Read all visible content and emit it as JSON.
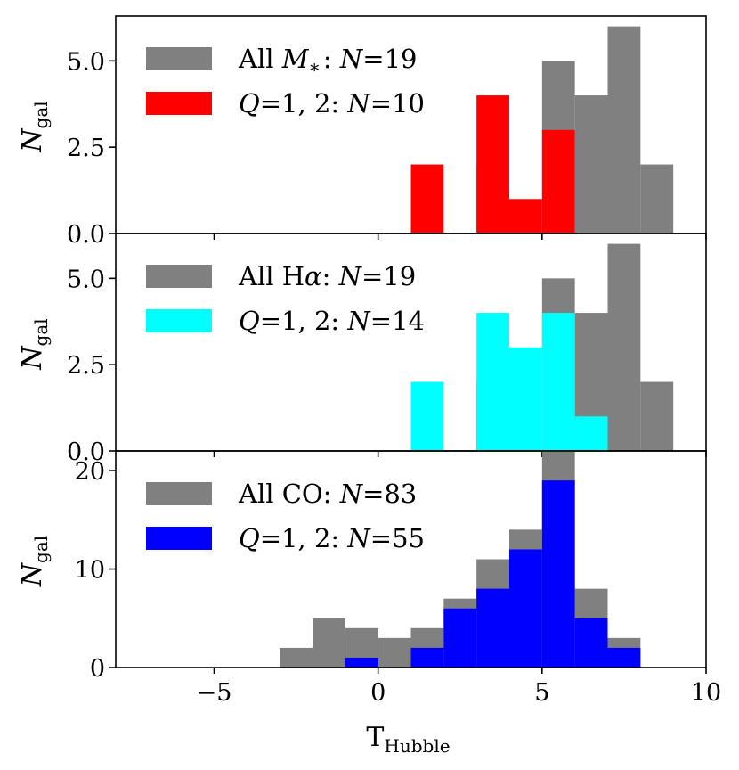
{
  "chart_data": [
    {
      "type": "bar",
      "x": [
        -8,
        -7,
        -6,
        -5,
        -4,
        -3,
        -2,
        -1,
        0,
        1,
        2,
        3,
        4,
        5,
        6,
        7,
        8,
        9
      ],
      "bin_width": 1,
      "series": [
        {
          "name": "All M∗: N=19",
          "color": "#808080",
          "values": [
            0,
            0,
            0,
            0,
            0,
            0,
            0,
            0,
            0,
            0,
            0,
            2,
            0,
            5,
            4,
            6,
            2,
            0
          ]
        },
        {
          "name": "Q=1, 2: N=10",
          "color": "#ff0000",
          "values": [
            0,
            0,
            0,
            0,
            0,
            0,
            0,
            0,
            0,
            2,
            0,
            4,
            1,
            3,
            0,
            0,
            0,
            0
          ]
        }
      ],
      "legend": [
        {
          "prefix": "All ",
          "var": "M",
          "sub": "∗",
          "rest": ": N=19"
        },
        {
          "prefix": "",
          "var": "Q",
          "sub": "",
          "rest": "=1, 2: N=10"
        }
      ],
      "legend_position": "top-left",
      "ylabel": "N",
      "ylabel_sub": "gal",
      "ylim": [
        0,
        6.3
      ],
      "yticks": [
        0.0,
        2.5,
        5.0
      ],
      "ytick_labels": [
        "0.0",
        "2.5",
        "5.0"
      ],
      "xlim": [
        -8,
        10
      ],
      "grid": false
    },
    {
      "type": "bar",
      "x": [
        -8,
        -7,
        -6,
        -5,
        -4,
        -3,
        -2,
        -1,
        0,
        1,
        2,
        3,
        4,
        5,
        6,
        7,
        8,
        9
      ],
      "bin_width": 1,
      "series": [
        {
          "name": "All Hα: N=19",
          "color": "#808080",
          "values": [
            0,
            0,
            0,
            0,
            0,
            0,
            0,
            0,
            0,
            0,
            0,
            2,
            0,
            5,
            4,
            6,
            2,
            0
          ]
        },
        {
          "name": "Q=1, 2: N=14",
          "color": "#00ffff",
          "values": [
            0,
            0,
            0,
            0,
            0,
            0,
            0,
            0,
            0,
            2,
            0,
            4,
            3,
            4,
            1,
            0,
            0,
            0
          ]
        }
      ],
      "legend": [
        {
          "prefix": "All H",
          "var": "α",
          "sub": "",
          "rest": ": N=19"
        },
        {
          "prefix": "",
          "var": "Q",
          "sub": "",
          "rest": "=1, 2: N=14"
        }
      ],
      "legend_position": "top-left",
      "ylabel": "N",
      "ylabel_sub": "gal",
      "ylim": [
        0,
        6.3
      ],
      "yticks": [
        0.0,
        2.5,
        5.0
      ],
      "ytick_labels": [
        "0.0",
        "2.5",
        "5.0"
      ],
      "xlim": [
        -8,
        10
      ],
      "grid": false
    },
    {
      "type": "bar",
      "x": [
        -8,
        -7,
        -6,
        -5,
        -4,
        -3,
        -2,
        -1,
        0,
        1,
        2,
        3,
        4,
        5,
        6,
        7,
        8,
        9
      ],
      "bin_width": 1,
      "series": [
        {
          "name": "All CO: N=83",
          "color": "#808080",
          "values": [
            0,
            0,
            0,
            0,
            0,
            2,
            5,
            4,
            3,
            4,
            7,
            11,
            14,
            22,
            8,
            3,
            0,
            0
          ]
        },
        {
          "name": "Q=1, 2: N=55",
          "color": "#0000ff",
          "values": [
            0,
            0,
            0,
            0,
            0,
            0,
            0,
            1,
            0,
            2,
            6,
            8,
            12,
            19,
            5,
            2,
            0,
            0
          ]
        }
      ],
      "legend": [
        {
          "prefix": "All CO",
          "var": "",
          "sub": "",
          "rest": ": N=83"
        },
        {
          "prefix": "",
          "var": "Q",
          "sub": "",
          "rest": "=1, 2: N=55"
        }
      ],
      "legend_position": "top-left",
      "ylabel": "N",
      "ylabel_sub": "gal",
      "ylim": [
        0,
        22.0
      ],
      "yticks": [
        0,
        10,
        20
      ],
      "ytick_labels": [
        "0",
        "10",
        "20"
      ],
      "xlim": [
        -8,
        10
      ],
      "xticks": [
        -5,
        0,
        5,
        10
      ],
      "xtick_labels": [
        "−5",
        "0",
        "5",
        "10"
      ],
      "xlabel": "T",
      "xlabel_sub": "Hubble",
      "grid": false
    }
  ]
}
